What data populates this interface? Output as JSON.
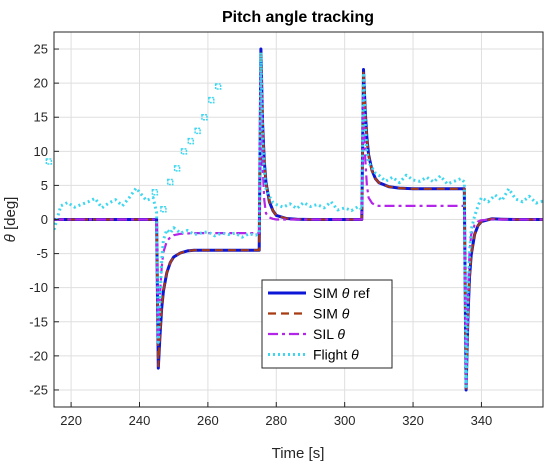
{
  "chart_data": {
    "type": "line",
    "title": "Pitch angle tracking",
    "xlabel": "Time [s]",
    "ylabel_prefix": "θ",
    "ylabel_suffix": " [deg]",
    "xlim": [
      215,
      358
    ],
    "ylim": [
      -27.5,
      27.5
    ],
    "xticks": [
      220,
      240,
      260,
      280,
      300,
      320,
      340
    ],
    "yticks": [
      -25,
      -20,
      -15,
      -10,
      -5,
      0,
      5,
      10,
      15,
      20,
      25
    ],
    "grid": true,
    "legend_position": "lower-center",
    "series": [
      {
        "name": "SIM θ ref",
        "legend_prefix": "SIM ",
        "legend_theta": "θ",
        "legend_suffix": " ref",
        "color": "#0b16d6",
        "dash": "",
        "width": 3,
        "x": [
          215,
          245,
          245.5,
          246,
          246.5,
          247,
          248,
          249,
          250,
          252,
          254,
          256,
          260,
          265,
          270,
          275,
          275.5,
          276,
          276.5,
          277,
          278,
          279,
          280,
          283,
          286,
          290,
          300,
          305,
          305.5,
          306,
          306.5,
          307,
          308,
          309,
          310,
          313,
          316,
          320,
          330,
          335,
          335.5,
          336,
          336.5,
          337,
          338,
          339,
          340,
          343,
          346,
          350,
          358
        ],
        "y": [
          0,
          0,
          -21.8,
          -17,
          -13,
          -10.5,
          -7.8,
          -6.3,
          -5.5,
          -4.9,
          -4.6,
          -4.5,
          -4.5,
          -4.5,
          -4.5,
          -4.5,
          25,
          14,
          8.5,
          5.4,
          2.6,
          1.3,
          0.6,
          0.15,
          0.05,
          0,
          0,
          0,
          22,
          16,
          12,
          9.5,
          7.2,
          6,
          5.4,
          4.8,
          4.6,
          4.5,
          4.5,
          4.5,
          -25,
          -15,
          -8.5,
          -5.2,
          -2.2,
          -0.9,
          -0.3,
          0.1,
          0.05,
          0,
          0
        ]
      },
      {
        "name": "SIM θ",
        "legend_prefix": "SIM ",
        "legend_theta": "θ",
        "legend_suffix": "",
        "color": "#a83b12",
        "dash": "8,5",
        "width": 2.2,
        "x": [
          215,
          245,
          245.5,
          246,
          246.5,
          247,
          248,
          249,
          250,
          252,
          254,
          256,
          260,
          265,
          270,
          275,
          275.5,
          276,
          276.5,
          277,
          278,
          279,
          280,
          283,
          286,
          290,
          300,
          305,
          305.5,
          306,
          306.5,
          307,
          308,
          309,
          310,
          313,
          316,
          320,
          330,
          335,
          335.5,
          336,
          336.5,
          337,
          338,
          339,
          340,
          343,
          346,
          350,
          358
        ],
        "y": [
          0,
          0,
          -21.5,
          -16.8,
          -12.9,
          -10.4,
          -7.8,
          -6.3,
          -5.5,
          -4.9,
          -4.6,
          -4.5,
          -4.5,
          -4.5,
          -4.5,
          -4.5,
          24.8,
          13.8,
          8.4,
          5.3,
          2.6,
          1.3,
          0.6,
          0.15,
          0.05,
          0,
          0,
          0,
          21.8,
          15.8,
          11.9,
          9.4,
          7.1,
          6,
          5.4,
          4.8,
          4.6,
          4.5,
          4.5,
          4.5,
          -24.8,
          -14.8,
          -8.4,
          -5.1,
          -2.2,
          -0.9,
          -0.3,
          0.1,
          0.05,
          0,
          0
        ]
      },
      {
        "name": "SIL θ",
        "legend_prefix": "SIL ",
        "legend_theta": "θ",
        "legend_suffix": "",
        "color": "#b325e8",
        "dash": "10,4,3,4",
        "width": 2.2,
        "x": [
          215,
          245,
          245.5,
          246,
          246.5,
          247,
          248,
          249,
          250,
          252,
          254,
          256,
          260,
          265,
          270,
          275,
          275.5,
          276,
          276.5,
          277,
          278,
          279,
          280,
          283,
          286,
          290,
          300,
          305,
          305.5,
          306,
          306.5,
          307,
          308,
          309,
          310,
          313,
          316,
          320,
          330,
          335,
          335.5,
          336,
          336.5,
          337,
          338,
          339,
          340,
          343,
          346,
          350,
          358
        ],
        "y": [
          0,
          0,
          -18,
          -11,
          -7,
          -4.8,
          -3.2,
          -2.6,
          -2.3,
          -2.1,
          -2.05,
          -2,
          -2,
          -2,
          -2,
          -2,
          22,
          8,
          2.8,
          0.9,
          0.3,
          0.1,
          0,
          0,
          0,
          0,
          0,
          0,
          18,
          9,
          5,
          3.2,
          2.4,
          2.1,
          2,
          2,
          2,
          2,
          2,
          2,
          -24,
          -12,
          -5,
          -2.2,
          -0.8,
          -0.3,
          -0.1,
          0,
          0,
          0,
          0
        ]
      },
      {
        "name": "Flight θ",
        "legend_prefix": "Flight ",
        "legend_theta": "θ",
        "legend_suffix": "",
        "color": "#3fd7f0",
        "dash": "2,3",
        "width": 3,
        "x": [
          215,
          217,
          219,
          221,
          223,
          225,
          227,
          229,
          231,
          233,
          235,
          237,
          239,
          240,
          242,
          244,
          245,
          245.5,
          246,
          246.5,
          247,
          248,
          249,
          250,
          252,
          254,
          256,
          258,
          260,
          262,
          264,
          266,
          268,
          270,
          272,
          274,
          275,
          275.5,
          276,
          276.5,
          277,
          278,
          279,
          280,
          282,
          284,
          286,
          288,
          290,
          292,
          294,
          296,
          298,
          300,
          302,
          304,
          305,
          305.5,
          306,
          306.5,
          307,
          308,
          309,
          310,
          312,
          314,
          316,
          318,
          320,
          322,
          324,
          326,
          328,
          330,
          332,
          334,
          335,
          335.5,
          336,
          336.5,
          337,
          338,
          339,
          340,
          342,
          344,
          346,
          348,
          350,
          352,
          354,
          356,
          358
        ],
        "y": [
          -1.5,
          2,
          2.5,
          1.8,
          2.2,
          2.6,
          3.1,
          1.7,
          2.4,
          2.9,
          2,
          3.2,
          4.6,
          4,
          2.8,
          3.2,
          1,
          -18,
          -12,
          -6,
          -3,
          -1.5,
          -2,
          -1.2,
          -2,
          -1.6,
          -2.2,
          -2,
          -1.8,
          -2.4,
          -2,
          -2.2,
          -2,
          -2.6,
          -2.1,
          -2.3,
          -2,
          24.5,
          12,
          7,
          4.5,
          3.4,
          2.5,
          2.2,
          1.8,
          2.3,
          1.6,
          2.5,
          1.9,
          2.2,
          1.7,
          2.6,
          1.4,
          1.7,
          1.3,
          1.9,
          1.5,
          21.5,
          14,
          10,
          8.4,
          7.6,
          6.8,
          6.5,
          5.6,
          6.2,
          5.4,
          6.5,
          5.8,
          5.6,
          6.2,
          5.5,
          6.4,
          5.2,
          5.6,
          6,
          5.5,
          -24.5,
          -12,
          -5,
          -1.5,
          0.5,
          2,
          3.2,
          2.6,
          3.6,
          2.8,
          4.5,
          3,
          2.6,
          3.4,
          2.4,
          2.7
        ]
      }
    ],
    "outlier_points": {
      "color": "#3fd7f0",
      "x": [
        213.5,
        244.5,
        247,
        249,
        251,
        253,
        255,
        257,
        259,
        261,
        263
      ],
      "y": [
        8.5,
        4,
        1.5,
        5.5,
        7.5,
        10,
        11.5,
        13,
        15,
        17.5,
        19.5
      ]
    }
  }
}
